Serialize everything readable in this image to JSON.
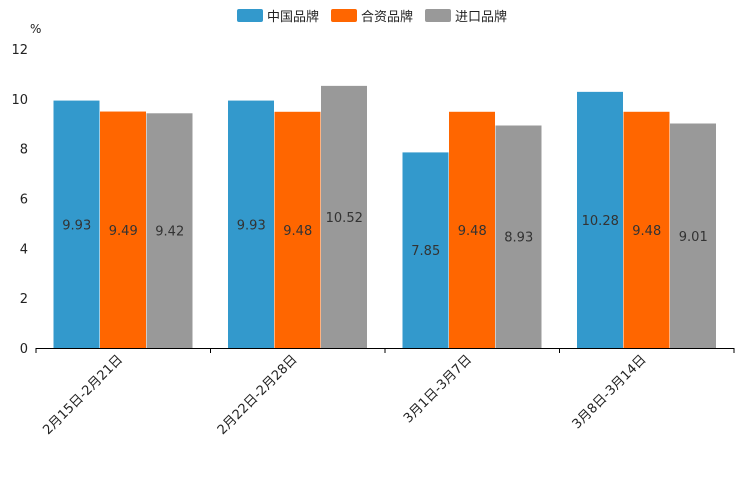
{
  "chart_data": {
    "type": "bar",
    "unit_label": "%",
    "categories": [
      "2月15日-2月21日",
      "2月22日-2月28日",
      "3月1日-3月7日",
      "3月8日-3月14日"
    ],
    "series": [
      {
        "name": "中国品牌",
        "color": "#3399cc",
        "values": [
          9.93,
          9.93,
          7.85,
          10.28
        ]
      },
      {
        "name": "合资品牌",
        "color": "#ff6600",
        "values": [
          9.49,
          9.48,
          9.48,
          9.48
        ]
      },
      {
        "name": "进口品牌",
        "color": "#999999",
        "values": [
          9.42,
          10.52,
          8.93,
          9.01
        ]
      }
    ],
    "data_labels": [
      [
        "9.93",
        "9.93",
        "7.85",
        "10.28"
      ],
      [
        "9.49",
        "9.48",
        "9.48",
        "9.48"
      ],
      [
        "9.42",
        "10.52",
        "8.93",
        "9.01"
      ]
    ],
    "ylim": [
      0,
      12
    ],
    "yticks": [
      0,
      2,
      4,
      6,
      8,
      10,
      12
    ],
    "legend_position": "top-center",
    "grid": false
  }
}
